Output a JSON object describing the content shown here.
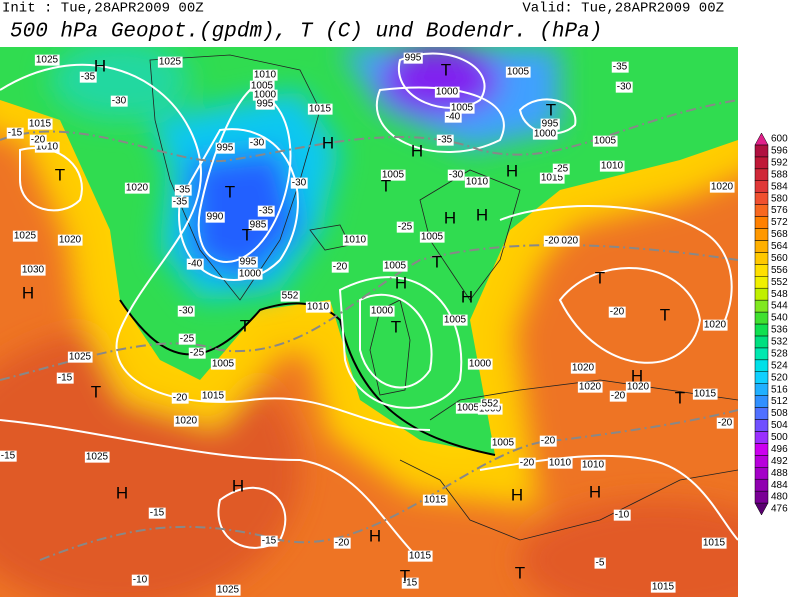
{
  "header": {
    "init": "Init : Tue,28APR2009 00Z",
    "valid": "Valid: Tue,28APR2009 00Z",
    "title": "500 hPa Geopot.(gpdm), T (C) und Bodendr. (hPa)"
  },
  "colorbar": {
    "ticks": [
      476,
      480,
      484,
      488,
      492,
      496,
      500,
      504,
      508,
      512,
      516,
      520,
      524,
      528,
      532,
      536,
      540,
      544,
      548,
      552,
      556,
      560,
      564,
      568,
      572,
      576,
      580,
      584,
      588,
      592,
      596,
      600
    ],
    "colors": [
      "#5a0070",
      "#7a0096",
      "#9000b0",
      "#a400c8",
      "#b800dc",
      "#cc00f0",
      "#9a30ff",
      "#7050ff",
      "#5070ff",
      "#3090ff",
      "#20b0ff",
      "#10d0ff",
      "#00e0e8",
      "#00e8b0",
      "#00e080",
      "#10e050",
      "#40e030",
      "#80e820",
      "#c0f000",
      "#f0f000",
      "#ffe000",
      "#ffc800",
      "#ffb000",
      "#ff9800",
      "#ff8000",
      "#f86820",
      "#f05030",
      "#e03838",
      "#d02838",
      "#c01838",
      "#b01040",
      "#e0208a"
    ]
  },
  "map": {
    "geopotential_labels": [
      552,
      552
    ],
    "pressure_labels": [
      1025,
      1025,
      1010,
      1005,
      1000,
      995,
      1015,
      995,
      1000,
      1005,
      1005,
      995,
      1000,
      1005,
      1010,
      1015,
      1015,
      1010,
      1020,
      995,
      990,
      985,
      995,
      1000,
      1025,
      1020,
      1030,
      1005,
      1010,
      1005,
      1010,
      1005,
      1010,
      1000,
      1005,
      1000,
      1020,
      1020,
      1020,
      1020,
      1020,
      1020,
      1015,
      1025,
      1015,
      1005,
      1020,
      1025,
      1005,
      1000,
      1005,
      1010,
      1010,
      1015,
      1015,
      1025,
      1015,
      1015
    ],
    "temperature_labels": [
      -35,
      -30,
      -15,
      -20,
      -35,
      -35,
      -30,
      -30,
      -35,
      -40,
      -20,
      -35,
      -30,
      -40,
      -25,
      -35,
      -30,
      -25,
      -30,
      -25,
      -25,
      -20,
      -20,
      -15,
      -20,
      -15,
      -15,
      -15,
      -20,
      -10,
      -5,
      -10,
      -20,
      -20,
      -20,
      -20,
      -15
    ],
    "pressure_centers": [
      "H",
      "T",
      "T",
      "H",
      "H",
      "T",
      "H",
      "T",
      "T",
      "T",
      "H",
      "H",
      "T",
      "H",
      "H",
      "T",
      "H",
      "T",
      "T",
      "H",
      "T",
      "T",
      "H",
      "H",
      "H",
      "H",
      "H",
      "T",
      "T",
      "T"
    ]
  }
}
